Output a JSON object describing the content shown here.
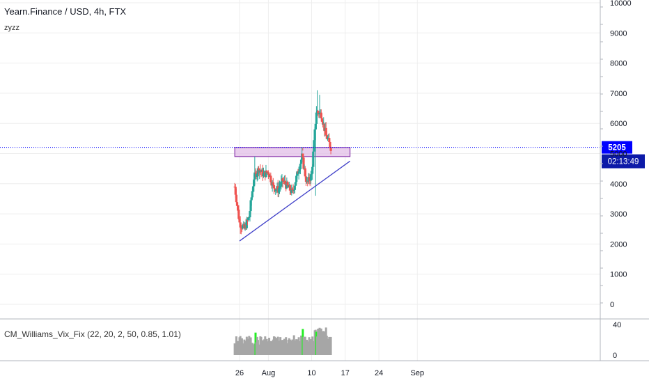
{
  "header": {
    "title": "Yearn.Finance / USD, 4h, FTX",
    "study_label": "zyzz"
  },
  "indicator": {
    "label": "CM_Williams_Vix_Fix (22, 20, 2, 50, 0.85, 1.01)",
    "axis_ticks": [
      "40",
      "0"
    ],
    "highlight_color": "#22ee22",
    "bar_color": "#a6a6a6"
  },
  "colors": {
    "up": "#26a69a",
    "down": "#ef5350",
    "ink": "#1a237e",
    "trendline": "#3f3fc8",
    "resistance_fill": "#e1bee7",
    "resistance_edge": "#7b1fa2",
    "price_tag": "#0000ff",
    "grid": "#eeeeee"
  },
  "chart_data": {
    "type": "candlestick",
    "title": "Yearn.Finance / USD, 4h, FTX",
    "y_axis": {
      "min": 0,
      "max": 10000,
      "ticks": [
        "10000",
        "9000",
        "8000",
        "7000",
        "6000",
        "5000",
        "4000",
        "3000",
        "2000",
        "1000",
        "0"
      ]
    },
    "x_axis": {
      "ticks": [
        "26",
        "Aug",
        "10",
        "17",
        "24",
        "Sep"
      ]
    },
    "last_price": "5205",
    "countdown": "02:13:49",
    "price_waypoints": [
      {
        "date": "2020-07-25",
        "price": 3900
      },
      {
        "date": "2020-07-26",
        "price": 2700
      },
      {
        "date": "2020-07-27",
        "price": 2500
      },
      {
        "date": "2020-07-28",
        "price": 2900
      },
      {
        "date": "2020-07-29",
        "price": 4200
      },
      {
        "date": "2020-07-30",
        "price": 4500
      },
      {
        "date": "2020-07-31",
        "price": 4300
      },
      {
        "date": "2020-08-01",
        "price": 4400
      },
      {
        "date": "2020-08-02",
        "price": 3900
      },
      {
        "date": "2020-08-03",
        "price": 3800
      },
      {
        "date": "2020-08-04",
        "price": 4100
      },
      {
        "date": "2020-08-05",
        "price": 3900
      },
      {
        "date": "2020-08-06",
        "price": 3700
      },
      {
        "date": "2020-08-07",
        "price": 4300
      },
      {
        "date": "2020-08-08",
        "price": 4900
      },
      {
        "date": "2020-08-09",
        "price": 4000
      },
      {
        "date": "2020-08-10",
        "price": 4300
      },
      {
        "date": "2020-08-11",
        "price": 6400
      },
      {
        "date": "2020-08-12",
        "price": 6300
      },
      {
        "date": "2020-08-13",
        "price": 5600
      },
      {
        "date": "2020-08-14",
        "price": 5200
      }
    ],
    "resistance_zone": {
      "from": "2020-07-25",
      "to": "2020-08-18",
      "low": 4900,
      "high": 5200
    },
    "trendline": [
      {
        "date": "2020-07-26",
        "price": 2100
      },
      {
        "date": "2020-08-18",
        "price": 4750
      }
    ]
  }
}
